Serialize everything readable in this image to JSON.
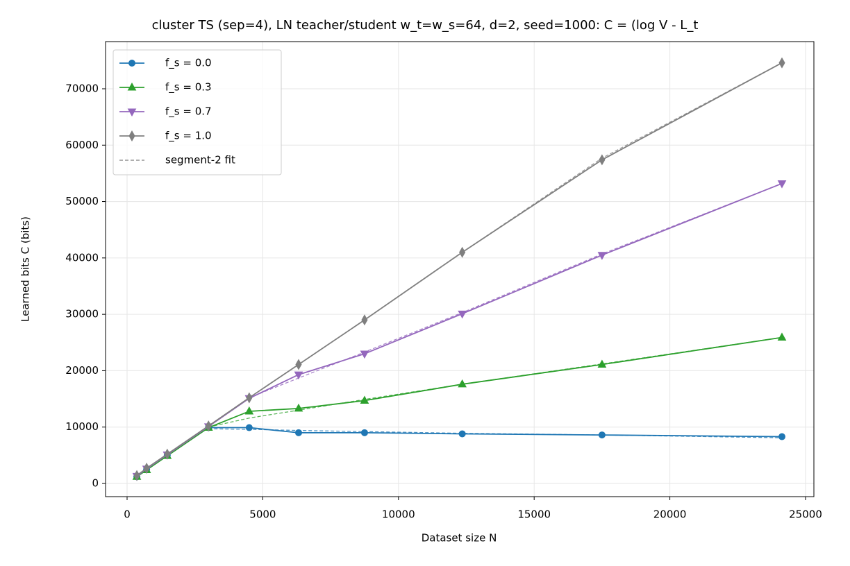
{
  "chart_data": {
    "type": "line",
    "title": "cluster TS (sep=4), LN teacher/student w_t=w_s=64, d=2, seed=1000: C = (log V - L_t",
    "xlabel": "Dataset size N",
    "ylabel": "Learned bits C (bits)",
    "x": [
      360,
      720,
      1480,
      3000,
      4500,
      6320,
      8750,
      12350,
      17500,
      24130
    ],
    "series": [
      {
        "name": "f_s = 0.0",
        "color": "#1f77b4",
        "marker": "circle",
        "values": [
          1200,
          2500,
          5000,
          9900,
          9900,
          9000,
          9000,
          8800,
          8600,
          8300
        ]
      },
      {
        "name": "f_s = 0.3",
        "color": "#2ca02c",
        "marker": "triangle-up",
        "values": [
          1200,
          2400,
          4900,
          9900,
          12800,
          13300,
          14700,
          17600,
          21100,
          25900
        ]
      },
      {
        "name": "f_s = 0.7",
        "color": "#9467bd",
        "marker": "triangle-down",
        "values": [
          1300,
          2600,
          5100,
          10100,
          15100,
          19300,
          23000,
          30100,
          40500,
          53200
        ]
      },
      {
        "name": "f_s = 1.0",
        "color": "#7f7f7f",
        "marker": "thin-diamond",
        "values": [
          1400,
          2700,
          5200,
          10200,
          15200,
          21100,
          29000,
          41000,
          57400,
          74600
        ]
      }
    ],
    "fits": {
      "name": "segment-2 fit",
      "color": "#7f7f7f",
      "series": [
        {
          "color": "#1f77b4",
          "x": [
            3000,
            4500,
            6320,
            8750,
            12350,
            17500,
            24130
          ],
          "values": [
            9700,
            9600,
            9400,
            9200,
            8900,
            8600,
            8100
          ]
        },
        {
          "color": "#2ca02c",
          "x": [
            3000,
            4500,
            6320,
            8750,
            12350,
            17500,
            24130
          ],
          "values": [
            10000,
            11600,
            13000,
            14900,
            17600,
            21200,
            25900
          ]
        },
        {
          "color": "#9467bd",
          "x": [
            4500,
            6320,
            8750,
            12350,
            17500,
            24130
          ],
          "values": [
            15200,
            18700,
            23300,
            30300,
            40700,
            53200
          ]
        },
        {
          "color": "#7f7f7f",
          "x": [
            12350,
            17500,
            24130
          ],
          "values": [
            41000,
            57700,
            74600
          ]
        }
      ]
    },
    "xlim": [
      -793,
      25307
    ],
    "ylim": [
      -2337,
      78364
    ],
    "xticks": [
      0,
      5000,
      10000,
      15000,
      20000,
      25000
    ],
    "yticks": [
      0,
      10000,
      20000,
      30000,
      40000,
      50000,
      60000,
      70000
    ],
    "grid": true,
    "legend": "upper left"
  }
}
